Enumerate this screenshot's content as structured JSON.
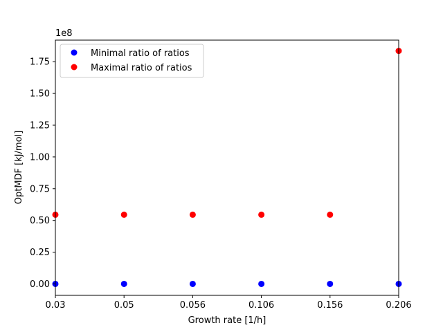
{
  "chart_data": {
    "type": "scatter",
    "x_scale": "categorical",
    "x_categories": [
      "0.03",
      "0.05",
      "0.056",
      "0.106",
      "0.156",
      "0.206"
    ],
    "xlabel": "Growth rate [1/h]",
    "ylabel": "OptMDF [kJ/mol]",
    "y_offset_label": "1e8",
    "y_multiplier": 100000000,
    "ylim": [
      -0.09,
      1.92
    ],
    "yticks": [
      0.0,
      0.25,
      0.5,
      0.75,
      1.0,
      1.25,
      1.5,
      1.75
    ],
    "ytick_labels": [
      "0.00",
      "0.25",
      "0.50",
      "0.75",
      "1.00",
      "1.25",
      "1.50",
      "1.75"
    ],
    "grid": false,
    "legend_position": "upper-left",
    "series": [
      {
        "name": "Minimal ratio of ratios",
        "color": "#0000ff",
        "marker": "circle",
        "x": [
          "0.03",
          "0.05",
          "0.056",
          "0.106",
          "0.156",
          "0.206"
        ],
        "y": [
          0.0,
          0.0,
          0.0,
          0.0,
          0.0,
          0.0
        ]
      },
      {
        "name": "Maximal ratio of ratios",
        "color": "#ff0000",
        "marker": "circle",
        "x": [
          "0.03",
          "0.05",
          "0.056",
          "0.106",
          "0.156",
          "0.206"
        ],
        "y": [
          0.545,
          0.545,
          0.545,
          0.545,
          0.545,
          1.835
        ]
      }
    ]
  }
}
